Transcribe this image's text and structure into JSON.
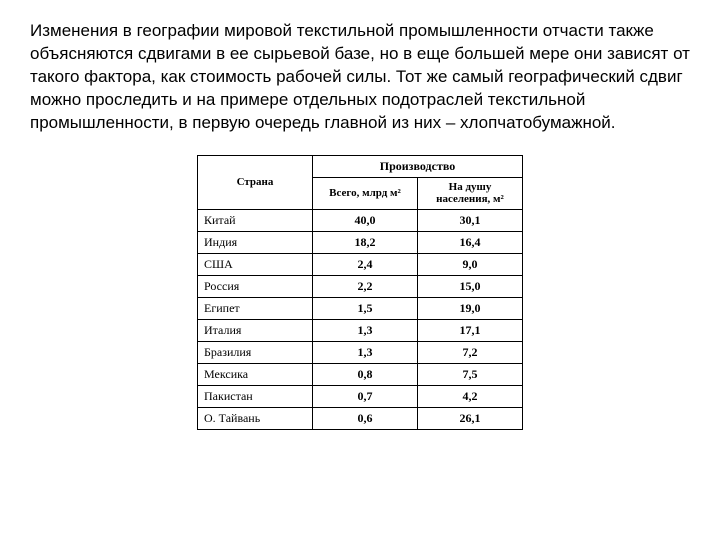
{
  "paragraph": "Изменения в географии мировой текстильной промышленности отчасти также объясняются сдвигами в ее сырьевой базе, но в еще большей мере они зависят от такого фактора, как стоимость рабочей силы. Тот же самый географический сдвиг можно проследить и на примере отдельных подотраслей текстильной промышленности, в первую очередь главной из них – хлопчатобумажной.",
  "table": {
    "headers": {
      "country": "Страна",
      "production": "Производство",
      "total": "Всего, млрд м²",
      "percap": "На душу населения, м²"
    },
    "rows": [
      {
        "country": "Китай",
        "total": "40,0",
        "percap": "30,1"
      },
      {
        "country": "Индия",
        "total": "18,2",
        "percap": "16,4"
      },
      {
        "country": "США",
        "total": "2,4",
        "percap": "9,0"
      },
      {
        "country": "Россия",
        "total": "2,2",
        "percap": "15,0"
      },
      {
        "country": "Египет",
        "total": "1,5",
        "percap": "19,0"
      },
      {
        "country": "Италия",
        "total": "1,3",
        "percap": "17,1"
      },
      {
        "country": "Бразилия",
        "total": "1,3",
        "percap": "7,2"
      },
      {
        "country": "Мексика",
        "total": "0,8",
        "percap": "7,5"
      },
      {
        "country": "Пакистан",
        "total": "0,7",
        "percap": "4,2"
      },
      {
        "country": "О. Тайвань",
        "total": "0,6",
        "percap": "26,1"
      }
    ]
  }
}
